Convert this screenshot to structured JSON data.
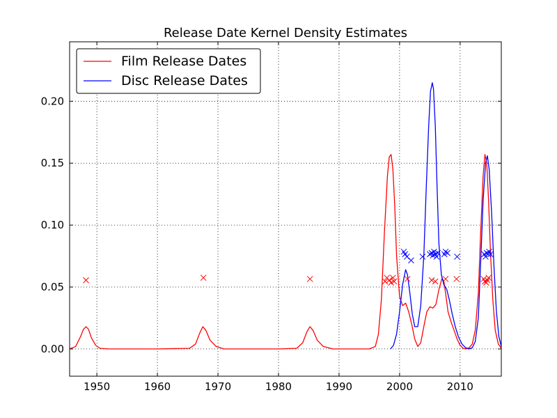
{
  "chart_data": {
    "type": "line",
    "title": "Release Date Kernel Density Estimates",
    "xlabel": "",
    "ylabel": "",
    "xlim": [
      1945.5,
      2016.8
    ],
    "ylim": [
      -0.022,
      0.248
    ],
    "xticks": [
      1950,
      1960,
      1970,
      1980,
      1990,
      2000,
      2010
    ],
    "yticks": [
      0.0,
      0.05,
      0.1,
      0.15,
      0.2
    ],
    "ytick_labels": [
      "0.00",
      "0.05",
      "0.10",
      "0.15",
      "0.20"
    ],
    "grid": true,
    "legend_position": "top-left",
    "series": [
      {
        "name": "Film Release Dates",
        "color": "#ff0000",
        "x": [
          1945.5,
          1946.5,
          1947.3,
          1947.8,
          1948.2,
          1948.6,
          1949.1,
          1949.8,
          1950.5,
          1952,
          1960,
          1965.3,
          1966.3,
          1967.0,
          1967.5,
          1968.0,
          1968.7,
          1969.7,
          1971,
          1980,
          1983.0,
          1984.0,
          1984.7,
          1985.2,
          1985.7,
          1986.4,
          1987.4,
          1989,
          1995,
          1996.0,
          1996.5,
          1997.0,
          1997.5,
          1998.0,
          1998.3,
          1998.6,
          1998.9,
          1999.2,
          1999.5,
          2000.0,
          2000.5,
          2001.0,
          2001.5,
          2002.0,
          2002.5,
          2003.0,
          2003.5,
          2004.0,
          2004.5,
          2005.0,
          2005.5,
          2006.0,
          2006.5,
          2007.0,
          2007.3,
          2007.6,
          2008.0,
          2008.5,
          2009.0,
          2009.5,
          2010.0,
          2010.5,
          2011.0,
          2011.5,
          2012.0,
          2012.5,
          2013.0,
          2013.4,
          2013.8,
          2014.1,
          2014.4,
          2014.7,
          2015.0,
          2015.4,
          2015.8,
          2016.3,
          2016.8
        ],
        "values": [
          0.0,
          0.002,
          0.01,
          0.016,
          0.018,
          0.016,
          0.009,
          0.003,
          0.0005,
          0.0,
          0.0,
          0.0005,
          0.004,
          0.013,
          0.018,
          0.015,
          0.007,
          0.002,
          0.0,
          0.0,
          0.0005,
          0.005,
          0.014,
          0.018,
          0.015,
          0.007,
          0.002,
          0.0,
          0.0,
          0.002,
          0.012,
          0.04,
          0.095,
          0.14,
          0.155,
          0.157,
          0.145,
          0.115,
          0.075,
          0.042,
          0.035,
          0.037,
          0.03,
          0.02,
          0.008,
          0.002,
          0.005,
          0.018,
          0.03,
          0.034,
          0.033,
          0.036,
          0.048,
          0.057,
          0.055,
          0.045,
          0.03,
          0.022,
          0.015,
          0.008,
          0.003,
          0.0005,
          0.0,
          0.001,
          0.004,
          0.015,
          0.045,
          0.095,
          0.14,
          0.157,
          0.15,
          0.12,
          0.08,
          0.04,
          0.015,
          0.004,
          0.0005
        ]
      },
      {
        "name": "Disc Release Dates",
        "color": "#0000ff",
        "x": [
          1998.5,
          1999.0,
          1999.5,
          2000.0,
          2000.5,
          2001.0,
          2001.3,
          2001.7,
          2002.1,
          2002.5,
          2003.0,
          2003.5,
          2004.0,
          2004.4,
          2004.8,
          2005.1,
          2005.4,
          2005.6,
          2005.9,
          2006.2,
          2006.5,
          2006.9,
          2007.3,
          2007.8,
          2008.2,
          2008.7,
          2009.2,
          2009.7,
          2010.3,
          2010.9,
          2011.5,
          2012.0,
          2012.5,
          2013.0,
          2013.4,
          2013.8,
          2014.2,
          2014.5,
          2014.8,
          2015.2,
          2015.6,
          2016.0,
          2016.4,
          2016.8
        ],
        "values": [
          0.0,
          0.003,
          0.012,
          0.03,
          0.052,
          0.064,
          0.06,
          0.045,
          0.028,
          0.018,
          0.018,
          0.035,
          0.075,
          0.13,
          0.18,
          0.208,
          0.215,
          0.21,
          0.18,
          0.13,
          0.085,
          0.06,
          0.052,
          0.048,
          0.04,
          0.028,
          0.018,
          0.01,
          0.004,
          0.001,
          0.0,
          0.001,
          0.006,
          0.025,
          0.07,
          0.12,
          0.15,
          0.156,
          0.145,
          0.11,
          0.065,
          0.03,
          0.01,
          0.002
        ]
      }
    ],
    "markers": [
      {
        "name": "Film Release Dates",
        "color": "#ff0000",
        "symbol": "x",
        "x": [
          1948.2,
          1967.6,
          1985.2,
          1997.6,
          1997.9,
          1998.3,
          1998.6,
          1998.9,
          1999.1,
          2001.3,
          2005.3,
          2005.9,
          2007.6,
          2009.4,
          2013.9,
          2014.1,
          2014.3,
          2014.5,
          2014.7
        ],
        "y": [
          0.0555,
          0.0575,
          0.0565,
          0.0545,
          0.0575,
          0.0555,
          0.0535,
          0.0575,
          0.0545,
          0.0565,
          0.0555,
          0.0545,
          0.0565,
          0.0565,
          0.0565,
          0.0545,
          0.0535,
          0.0555,
          0.0575
        ]
      },
      {
        "name": "Disc Release Dates",
        "color": "#0000ff",
        "symbol": "x",
        "x": [
          2000.7,
          2000.9,
          2001.2,
          2001.9,
          2003.8,
          2005.0,
          2005.3,
          2005.5,
          2005.7,
          2005.9,
          2006.1,
          2006.3,
          2007.4,
          2007.6,
          2007.9,
          2009.5,
          2014.0,
          2014.2,
          2014.4,
          2014.6,
          2014.8,
          2015.0
        ],
        "y": [
          0.0785,
          0.0765,
          0.0745,
          0.0715,
          0.0745,
          0.0765,
          0.0775,
          0.0755,
          0.0785,
          0.0765,
          0.0745,
          0.0775,
          0.0765,
          0.0785,
          0.0775,
          0.0745,
          0.0765,
          0.0745,
          0.0775,
          0.0765,
          0.0785,
          0.0765
        ]
      }
    ]
  }
}
